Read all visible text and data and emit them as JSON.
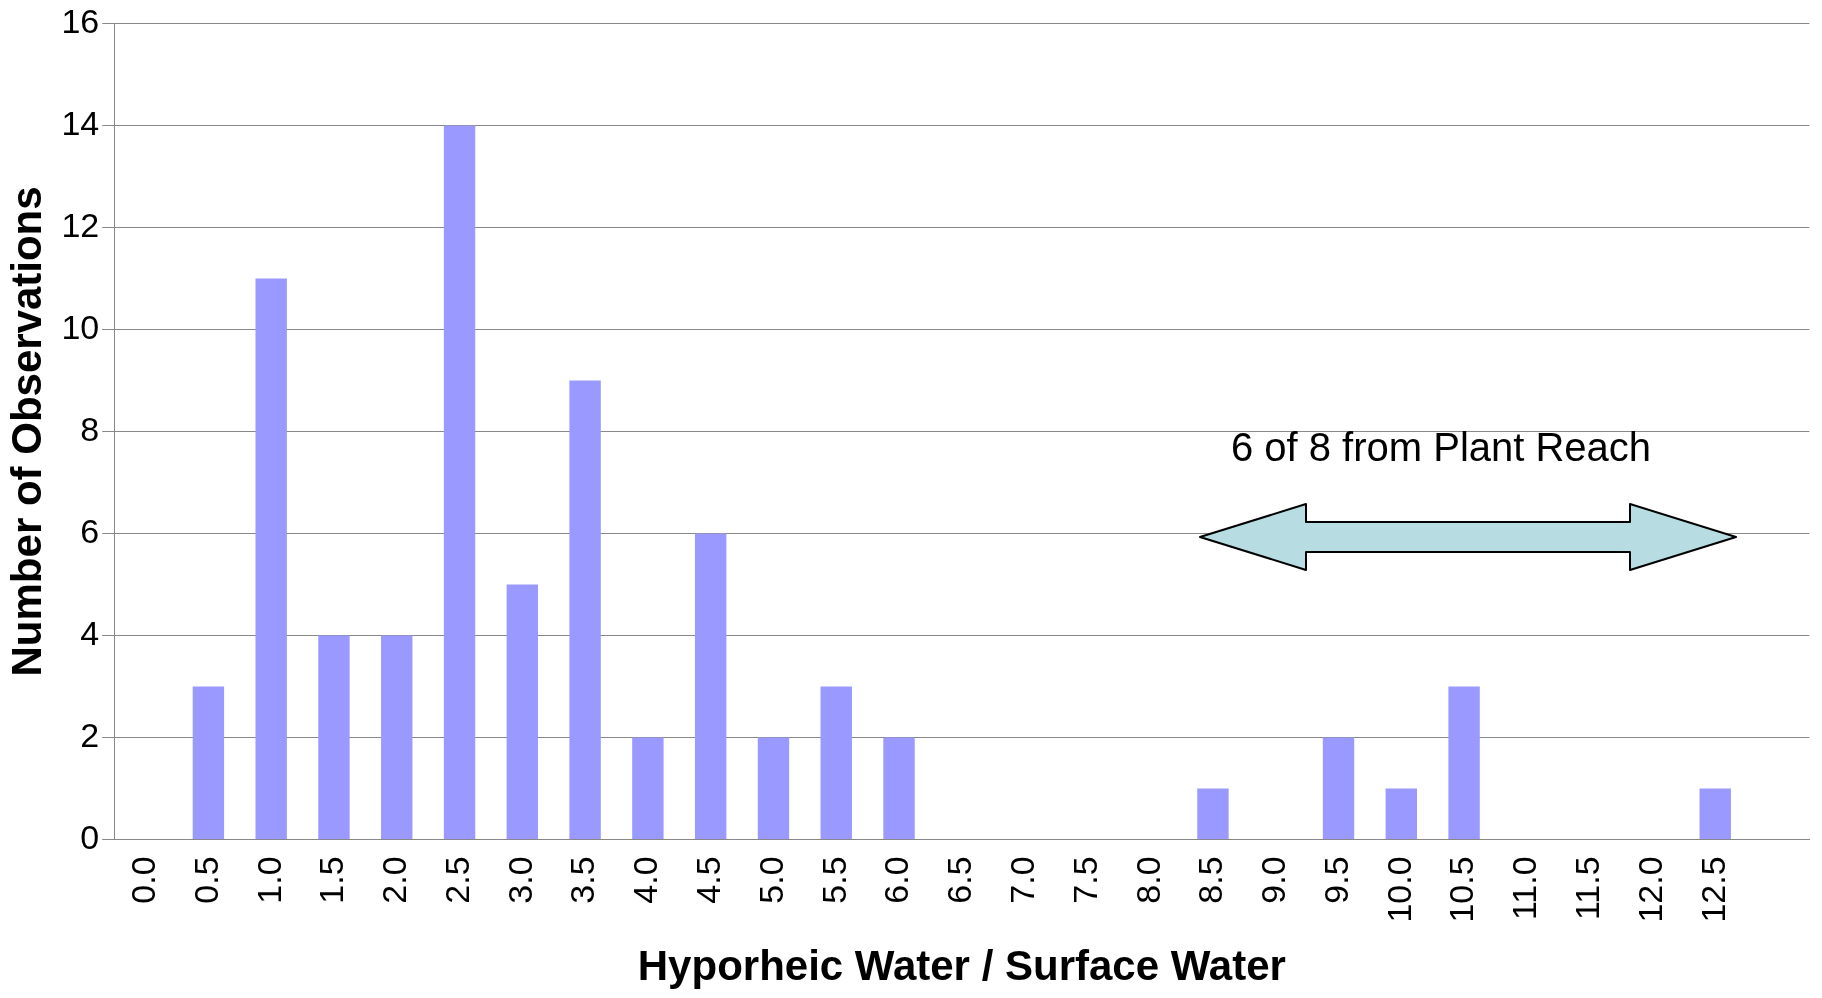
{
  "chart_data": {
    "type": "bar",
    "xlabel": "Hyporheic Water / Surface Water",
    "ylabel": "Number of Observations",
    "categories": [
      "0.0",
      "0.5",
      "1.0",
      "1.5",
      "2.0",
      "2.5",
      "3.0",
      "3.5",
      "4.0",
      "4.5",
      "5.0",
      "5.5",
      "6.0",
      "6.5",
      "7.0",
      "7.5",
      "8.0",
      "8.5",
      "9.0",
      "9.5",
      "10.0",
      "10.5",
      "11.0",
      "11.5",
      "12.0",
      "12.5",
      null
    ],
    "values": [
      0,
      3,
      11,
      4,
      4,
      14,
      5,
      9,
      2,
      6,
      2,
      3,
      2,
      0,
      0,
      0,
      0,
      1,
      0,
      2,
      1,
      3,
      0,
      0,
      0,
      1,
      0
    ],
    "color": "#9999ff",
    "ylim": [
      0,
      16
    ],
    "yticks": [
      0,
      2,
      4,
      6,
      8,
      10,
      12,
      14,
      16
    ],
    "grid": "y",
    "legend": false,
    "annotations": [
      "6 of 8 from Plant Reach"
    ]
  }
}
